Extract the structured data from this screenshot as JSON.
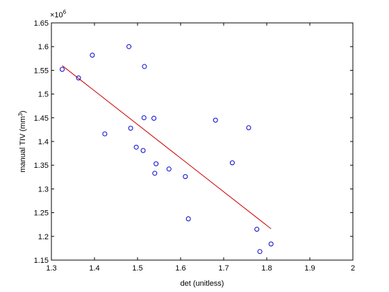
{
  "chart_data": {
    "type": "scatter",
    "title": "",
    "xlabel": "det (unitless)",
    "ylabel": "manual TIV (mm³)",
    "ylabel_main": "manual TIV (mm",
    "ylabel_sup": "3",
    "ylabel_close": ")",
    "y_multiplier_prefix": "×10",
    "y_multiplier_exp": "6",
    "xlim": [
      1.3,
      2.0
    ],
    "ylim": [
      1.15,
      1.65
    ],
    "xticks": [
      "1.3",
      "1.4",
      "1.5",
      "1.6",
      "1.7",
      "1.8",
      "1.9",
      "2"
    ],
    "yticks": [
      "1.15",
      "1.2",
      "1.25",
      "1.3",
      "1.35",
      "1.4",
      "1.45",
      "1.5",
      "1.55",
      "1.6",
      "1.65"
    ],
    "grid": false,
    "colors": {
      "marker": "#0000cc",
      "fit_line": "#cc0000",
      "axes": "#000000"
    },
    "points": [
      {
        "x": 1.325,
        "y": 1.552
      },
      {
        "x": 1.363,
        "y": 1.534
      },
      {
        "x": 1.395,
        "y": 1.582
      },
      {
        "x": 1.424,
        "y": 1.416
      },
      {
        "x": 1.48,
        "y": 1.6
      },
      {
        "x": 1.484,
        "y": 1.428
      },
      {
        "x": 1.497,
        "y": 1.388
      },
      {
        "x": 1.513,
        "y": 1.381
      },
      {
        "x": 1.515,
        "y": 1.45
      },
      {
        "x": 1.516,
        "y": 1.558
      },
      {
        "x": 1.538,
        "y": 1.449
      },
      {
        "x": 1.54,
        "y": 1.333
      },
      {
        "x": 1.543,
        "y": 1.353
      },
      {
        "x": 1.573,
        "y": 1.342
      },
      {
        "x": 1.611,
        "y": 1.326
      },
      {
        "x": 1.618,
        "y": 1.237
      },
      {
        "x": 1.681,
        "y": 1.445
      },
      {
        "x": 1.72,
        "y": 1.355
      },
      {
        "x": 1.758,
        "y": 1.429
      },
      {
        "x": 1.777,
        "y": 1.215
      },
      {
        "x": 1.784,
        "y": 1.168
      },
      {
        "x": 1.81,
        "y": 1.184
      }
    ],
    "fit_line": {
      "x": [
        1.325,
        1.81
      ],
      "y": [
        1.56,
        1.216
      ]
    }
  }
}
